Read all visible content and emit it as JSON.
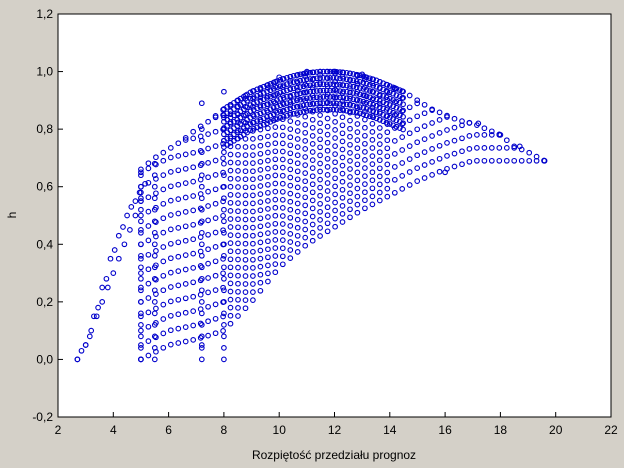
{
  "chart_data": {
    "type": "scatter",
    "title": "",
    "xlabel": "Rozpiętość przedziału prognoz",
    "ylabel": "h",
    "xlim": [
      2,
      22
    ],
    "ylim": [
      -0.2,
      1.2
    ],
    "x_ticks": [
      "2",
      "4",
      "6",
      "8",
      "10",
      "12",
      "14",
      "16",
      "18",
      "20",
      "22"
    ],
    "y_ticks": [
      "-0,2",
      "0,0",
      "0,2",
      "0,4",
      "0,6",
      "0,8",
      "1,0",
      "1,2"
    ],
    "grid": false,
    "legend": "none",
    "marker": "open-circle",
    "colors": {
      "marker": "#0000cc",
      "plot_bg": "#ffffff",
      "frame_bg": "#d4d0c8"
    },
    "envelope": {
      "upper": {
        "x": [
          5.0,
          5.5,
          6.0,
          6.5,
          7.0,
          7.5,
          8.0,
          8.5,
          9.0,
          9.5,
          10.0,
          10.5,
          11.0,
          11.5,
          12.0,
          12.5,
          13.0,
          13.5,
          14.0,
          14.5,
          15.0,
          15.5,
          16.0,
          16.5,
          17.0,
          17.5,
          18.0,
          18.5,
          19.0,
          19.6
        ],
        "y": [
          0.66,
          0.7,
          0.73,
          0.76,
          0.8,
          0.83,
          0.87,
          0.9,
          0.93,
          0.95,
          0.97,
          0.985,
          0.995,
          1.0,
          1.0,
          0.995,
          0.985,
          0.97,
          0.95,
          0.93,
          0.9,
          0.87,
          0.85,
          0.83,
          0.82,
          0.8,
          0.78,
          0.74,
          0.72,
          0.69
        ]
      },
      "left_arc": {
        "x": [
          2.7,
          3.0,
          3.3,
          3.6,
          3.9,
          4.2,
          4.5,
          4.8,
          5.0
        ],
        "y": [
          0.0,
          0.05,
          0.15,
          0.25,
          0.35,
          0.43,
          0.5,
          0.55,
          0.58
        ]
      },
      "lower": {
        "x": [
          5.0,
          6.0,
          7.0,
          8.0,
          9.0,
          10.0,
          11.0,
          12.0,
          13.0,
          14.0,
          15.0,
          16.0,
          17.0,
          18.0
        ],
        "y": [
          0.0,
          0.05,
          0.07,
          0.1,
          0.2,
          0.32,
          0.4,
          0.46,
          0.52,
          0.57,
          0.62,
          0.66,
          0.69,
          0.69
        ]
      }
    },
    "points": [
      {
        "x": 2.7,
        "y": 0.0
      },
      {
        "x": 3.0,
        "y": 0.05
      },
      {
        "x": 3.2,
        "y": 0.1
      },
      {
        "x": 3.4,
        "y": 0.15
      },
      {
        "x": 3.6,
        "y": 0.2
      },
      {
        "x": 3.8,
        "y": 0.25
      },
      {
        "x": 4.0,
        "y": 0.3
      },
      {
        "x": 4.2,
        "y": 0.35
      },
      {
        "x": 4.4,
        "y": 0.4
      },
      {
        "x": 4.6,
        "y": 0.45
      },
      {
        "x": 4.8,
        "y": 0.5
      },
      {
        "x": 5.0,
        "y": 0.0
      },
      {
        "x": 5.0,
        "y": 0.55
      },
      {
        "x": 7.2,
        "y": 0.05
      },
      {
        "x": 7.2,
        "y": 0.89
      },
      {
        "x": 8.0,
        "y": 0.93
      },
      {
        "x": 10.0,
        "y": 0.98
      },
      {
        "x": 11.0,
        "y": 1.0
      },
      {
        "x": 12.0,
        "y": 1.0
      },
      {
        "x": 13.0,
        "y": 0.99
      },
      {
        "x": 16.0,
        "y": 0.65
      },
      {
        "x": 17.2,
        "y": 0.82
      },
      {
        "x": 18.0,
        "y": 0.78
      },
      {
        "x": 18.7,
        "y": 0.74
      },
      {
        "x": 19.6,
        "y": 0.69
      }
    ]
  }
}
